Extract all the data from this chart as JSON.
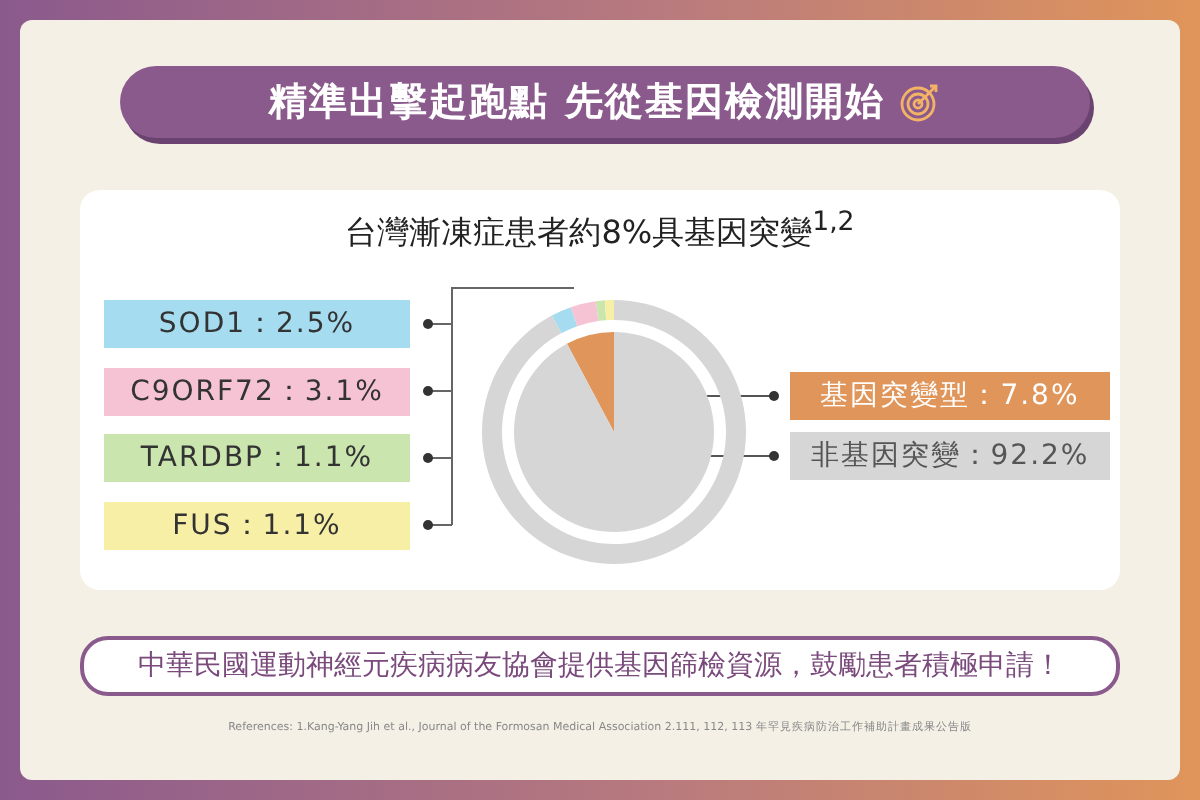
{
  "chart_data": [
    {
      "type": "pie",
      "title": "精準出擊起跑點 先從基因檢測開始",
      "subtitle": "台灣漸凍症患者約8%具基因突變$^{1,2}$",
      "categories": [
        "基因突變型：7.8%",
        "非基因突變：92.2%"
      ],
      "values": [
        7.8,
        92.2
      ],
      "colors": [
        "#e0955a",
        "#d6d6d6"
      ],
      "legend": "right",
      "annotations": [
        "中華民國運動神經元疾病病友協會提供基因篩檢資源，鼓勵患者積極申請！",
        "References: 1.Kang-Yang Jih et al., Journal of the Formosan Medical Association 2.111, 112, 113 年罕見疾病防治工作補助計畫成果公告版"
      ]
    },
    {
      "type": "donut",
      "categories": [
        "SOD1：2.5%",
        "C9ORF72：3.1%",
        "TARDBP：1.1%",
        "FUS：1.1%",
        null
      ],
      "values": [
        2.5,
        3.1,
        1.1,
        1.1,
        92.2
      ],
      "colors": [
        "#a6dcf0",
        "#f6c3d5",
        "#cbe5ae",
        "#f7efa6",
        "#d6d6d6"
      ],
      "legend": "left"
    }
  ]
}
